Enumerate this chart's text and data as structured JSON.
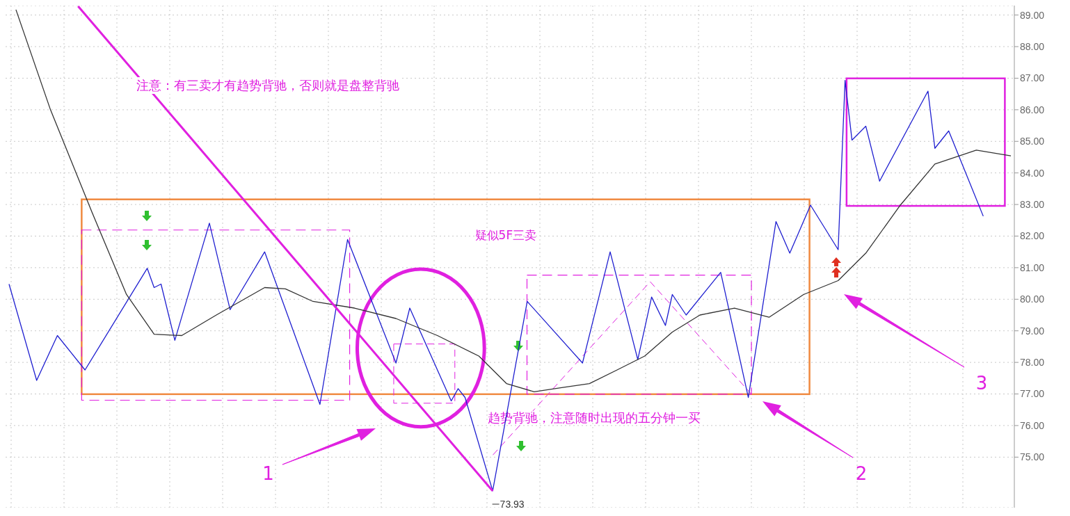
{
  "chart_data": {
    "type": "line",
    "title": "注意：有三卖才有趋势背驰，否则就是盘整背驰",
    "categories": [
      null,
      null,
      null,
      null,
      null,
      null,
      null,
      null,
      null,
      null,
      null,
      null,
      null,
      null,
      null,
      null,
      null,
      null,
      null,
      null,
      null,
      null,
      null,
      null,
      null,
      null,
      null,
      null,
      null,
      null,
      null,
      null,
      null,
      null,
      null,
      null,
      null,
      null,
      null,
      null,
      null,
      null,
      null,
      null,
      null,
      null,
      null,
      null,
      null,
      null,
      null,
      null,
      null,
      null,
      null,
      null,
      null,
      null,
      null,
      null,
      null,
      null,
      null,
      null,
      null,
      null,
      null,
      null,
      null,
      null,
      null,
      null,
      null,
      null,
      null,
      null,
      null,
      null,
      null,
      null,
      null,
      null,
      null,
      null,
      null,
      null,
      null,
      null,
      null,
      null,
      null,
      null,
      null,
      null,
      null,
      null,
      null,
      null,
      null,
      null,
      null,
      null,
      null,
      null,
      null,
      null,
      null,
      null,
      null,
      null,
      null,
      null,
      null,
      null,
      null,
      null,
      null,
      null,
      null,
      null,
      null,
      null,
      null,
      null,
      null,
      null,
      null,
      null,
      null,
      null,
      null,
      null,
      null,
      null,
      null,
      null,
      null,
      null,
      null,
      null,
      null,
      null,
      null,
      null,
      null,
      null
    ],
    "ylim": [
      73.4,
      89.3
    ],
    "yticks": [
      {
        "value": 75,
        "label": "75.00"
      },
      {
        "value": 76,
        "label": "76.00"
      },
      {
        "value": 77,
        "label": "77.00"
      },
      {
        "value": 78,
        "label": "78.00"
      },
      {
        "value": 79,
        "label": "79.00"
      },
      {
        "value": 80,
        "label": "80.00"
      },
      {
        "value": 81,
        "label": "81.00"
      },
      {
        "value": 82,
        "label": "82.00"
      },
      {
        "value": 83,
        "label": "83.00"
      },
      {
        "value": 84,
        "label": "84.00"
      },
      {
        "value": 85,
        "label": "85.00"
      },
      {
        "value": 86,
        "label": "86.00"
      },
      {
        "value": 87,
        "label": "87.00"
      },
      {
        "value": 88,
        "label": "88.00"
      },
      {
        "value": 89,
        "label": "89.00"
      }
    ],
    "tick_labels": "y",
    "grid": true,
    "marker": "none",
    "series": [
      {
        "color": "#1f1fd0",
        "values": [
          80.48,
          null,
          null,
          null,
          77.43,
          null,
          null,
          78.85,
          null,
          null,
          null,
          77.76,
          null,
          null,
          null,
          null,
          null,
          null,
          null,
          null,
          80.98,
          80.37,
          80.48,
          null,
          78.7,
          null,
          null,
          null,
          null,
          82.41,
          null,
          null,
          79.67,
          null,
          null,
          null,
          null,
          81.5,
          null,
          null,
          null,
          null,
          null,
          null,
          null,
          76.67,
          null,
          null,
          null,
          81.89,
          null,
          null,
          null,
          null,
          null,
          null,
          77.98,
          null,
          79.72,
          null,
          null,
          null,
          null,
          null,
          76.78,
          77.17,
          76.89,
          null,
          null,
          null,
          73.93,
          null,
          null,
          null,
          null,
          79.93,
          null,
          null,
          null,
          null,
          null,
          null,
          null,
          77.98,
          null,
          null,
          null,
          81.5,
          null,
          null,
          null,
          78.09,
          null,
          80.07,
          null,
          79.17,
          80.15,
          null,
          79.5,
          null,
          null,
          null,
          null,
          80.85,
          null,
          null,
          null,
          76.89,
          null,
          null,
          null,
          82.46,
          null,
          81.46,
          null,
          null,
          82.98,
          null,
          null,
          null,
          81.57,
          86.93,
          85.04,
          null,
          85.48,
          null,
          83.74,
          null,
          null,
          null,
          null,
          null,
          null,
          86.59,
          84.78,
          null,
          85.33,
          null,
          null,
          null,
          null,
          82.63,
          null,
          null,
          null,
          null
        ]
      },
      {
        "color": "#333333",
        "values": [
          null,
          89.17,
          null,
          null,
          null,
          null,
          86.0,
          null,
          null,
          null,
          null,
          null,
          82.76,
          null,
          null,
          null,
          null,
          80.15,
          null,
          null,
          null,
          78.89,
          null,
          null,
          null,
          78.85,
          null,
          null,
          null,
          null,
          79.5,
          null,
          null,
          null,
          null,
          null,
          null,
          80.37,
          null,
          null,
          80.33,
          null,
          null,
          null,
          79.93,
          null,
          null,
          null,
          null,
          null,
          79.72,
          null,
          null,
          null,
          null,
          null,
          79.39,
          null,
          null,
          null,
          null,
          null,
          78.85,
          null,
          null,
          null,
          null,
          null,
          78.2,
          null,
          null,
          null,
          77.33,
          null,
          null,
          null,
          77.07,
          null,
          null,
          null,
          77.2,
          null,
          null,
          null,
          77.33,
          null,
          null,
          null,
          77.76,
          null,
          null,
          null,
          78.2,
          null,
          null,
          null,
          78.96,
          null,
          null,
          null,
          79.5,
          null,
          null,
          null,
          null,
          79.72,
          null,
          null,
          null,
          null,
          79.43,
          null,
          null,
          null,
          null,
          80.15,
          null,
          null,
          null,
          null,
          80.59,
          null,
          null,
          null,
          81.46,
          null,
          null,
          null,
          null,
          82.98,
          null,
          null,
          null,
          null,
          84.28,
          null,
          null,
          null,
          null,
          null,
          84.72,
          null,
          null,
          null,
          null,
          84.54
        ]
      },
      {
        "color": "#e020e0",
        "values": [
          null,
          null,
          null,
          null,
          null,
          null,
          null,
          null,
          null,
          null,
          89.28,
          null,
          null,
          null,
          null,
          null,
          null,
          null,
          null,
          null,
          null,
          null,
          null,
          null,
          null,
          null,
          null,
          null,
          null,
          null,
          null,
          null,
          null,
          null,
          null,
          null,
          null,
          null,
          null,
          null,
          null,
          null,
          null,
          null,
          null,
          null,
          null,
          null,
          null,
          null,
          null,
          null,
          null,
          null,
          null,
          null,
          null,
          null,
          null,
          null,
          null,
          null,
          null,
          null,
          null,
          null,
          null,
          null,
          null,
          null,
          73.93,
          null,
          null,
          null,
          null,
          null,
          null,
          null,
          null,
          null,
          null,
          null,
          null,
          null,
          null,
          null,
          null,
          null,
          null,
          null,
          null,
          null,
          null,
          null,
          null,
          null,
          null,
          null,
          null,
          null,
          null,
          null,
          null,
          null,
          null,
          null,
          null,
          null,
          null,
          null,
          null,
          null,
          null,
          null,
          null,
          null,
          null,
          null,
          null,
          null,
          null,
          null,
          null,
          null,
          null,
          null,
          null,
          null,
          null,
          null,
          null,
          null,
          null,
          null,
          null,
          null,
          null,
          null,
          null,
          null,
          null,
          null,
          null,
          null,
          null,
          null
        ]
      }
    ],
    "annotations": [
      "73.93",
      "疑似5F三卖",
      "趋势背驰，注意随时出现的五分钟一买",
      "1",
      "2",
      "3"
    ]
  }
}
